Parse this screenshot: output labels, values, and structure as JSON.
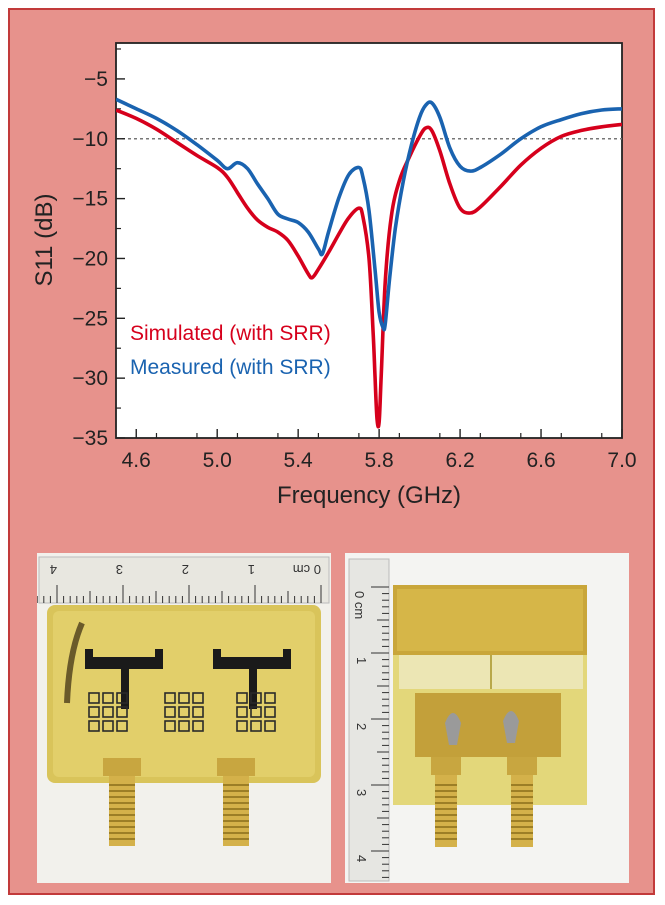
{
  "chart_data": {
    "type": "line",
    "xlabel": "Frequency (GHz)",
    "ylabel": "S11 (dB)",
    "xlim": [
      4.5,
      7.0
    ],
    "ylim": [
      -35,
      -2
    ],
    "xticks": [
      4.6,
      5.0,
      5.4,
      5.8,
      6.2,
      6.6,
      7.0
    ],
    "xtick_labels": [
      "4.6",
      "5.0",
      "5.4",
      "5.8",
      "6.2",
      "6.6",
      "7.0"
    ],
    "yticks": [
      -5,
      -10,
      -15,
      -20,
      -25,
      -30,
      -35
    ],
    "ytick_labels": [
      "−5",
      "−10",
      "−15",
      "−20",
      "−25",
      "−30",
      "−35"
    ],
    "reference_line": {
      "y": -10,
      "style": "dotted"
    },
    "legend_placement": "lower-left",
    "series": [
      {
        "name": "Simulated (with SRR)",
        "color": "#d6001c",
        "x": [
          4.5,
          4.6,
          4.7,
          4.8,
          4.9,
          5.0,
          5.05,
          5.1,
          5.15,
          5.2,
          5.25,
          5.3,
          5.35,
          5.4,
          5.45,
          5.47,
          5.5,
          5.55,
          5.6,
          5.65,
          5.7,
          5.72,
          5.75,
          5.77,
          5.78,
          5.79,
          5.8,
          5.81,
          5.83,
          5.86,
          5.9,
          5.95,
          6.0,
          6.03,
          6.06,
          6.1,
          6.15,
          6.2,
          6.25,
          6.3,
          6.4,
          6.5,
          6.6,
          6.7,
          6.8,
          6.9,
          7.0
        ],
        "y": [
          -7.6,
          -8.3,
          -9.2,
          -10.3,
          -11.4,
          -12.4,
          -13.2,
          -14.5,
          -15.8,
          -16.8,
          -17.4,
          -17.8,
          -18.5,
          -19.8,
          -21.3,
          -21.6,
          -20.9,
          -19.5,
          -18.0,
          -16.6,
          -15.8,
          -16.5,
          -20.0,
          -26.0,
          -30.0,
          -33.5,
          -33.7,
          -30.0,
          -22.0,
          -16.5,
          -13.5,
          -11.5,
          -9.8,
          -9.1,
          -9.3,
          -11.0,
          -13.8,
          -15.8,
          -16.2,
          -15.7,
          -14.0,
          -12.2,
          -10.8,
          -9.8,
          -9.3,
          -9.0,
          -8.8
        ]
      },
      {
        "name": "Measured (with SRR)",
        "color": "#1a63b0",
        "x": [
          4.5,
          4.6,
          4.7,
          4.8,
          4.9,
          5.0,
          5.05,
          5.1,
          5.15,
          5.2,
          5.25,
          5.3,
          5.35,
          5.4,
          5.45,
          5.5,
          5.52,
          5.55,
          5.6,
          5.65,
          5.7,
          5.72,
          5.75,
          5.78,
          5.8,
          5.82,
          5.83,
          5.85,
          5.88,
          5.92,
          5.96,
          6.0,
          6.03,
          6.06,
          6.1,
          6.15,
          6.2,
          6.25,
          6.3,
          6.4,
          6.5,
          6.6,
          6.7,
          6.8,
          6.9,
          7.0
        ],
        "y": [
          -6.7,
          -7.5,
          -8.3,
          -9.3,
          -10.5,
          -11.8,
          -12.5,
          -12.0,
          -12.5,
          -13.8,
          -15.0,
          -16.3,
          -16.7,
          -17.0,
          -17.8,
          -19.2,
          -19.6,
          -17.8,
          -15.0,
          -13.0,
          -12.4,
          -13.2,
          -16.0,
          -21.0,
          -24.5,
          -25.8,
          -25.5,
          -22.0,
          -17.5,
          -13.5,
          -10.5,
          -8.2,
          -7.2,
          -7.0,
          -8.2,
          -10.8,
          -12.3,
          -12.7,
          -12.4,
          -11.3,
          -10.0,
          -9.0,
          -8.4,
          -7.9,
          -7.6,
          -7.5
        ]
      }
    ]
  },
  "photos": {
    "left": {
      "ruler_numbers": [
        "4",
        "3",
        "2",
        "1",
        "0 cm"
      ]
    },
    "right": {
      "ruler_numbers": [
        "0 cm",
        "1",
        "2",
        "3",
        "4"
      ]
    }
  }
}
